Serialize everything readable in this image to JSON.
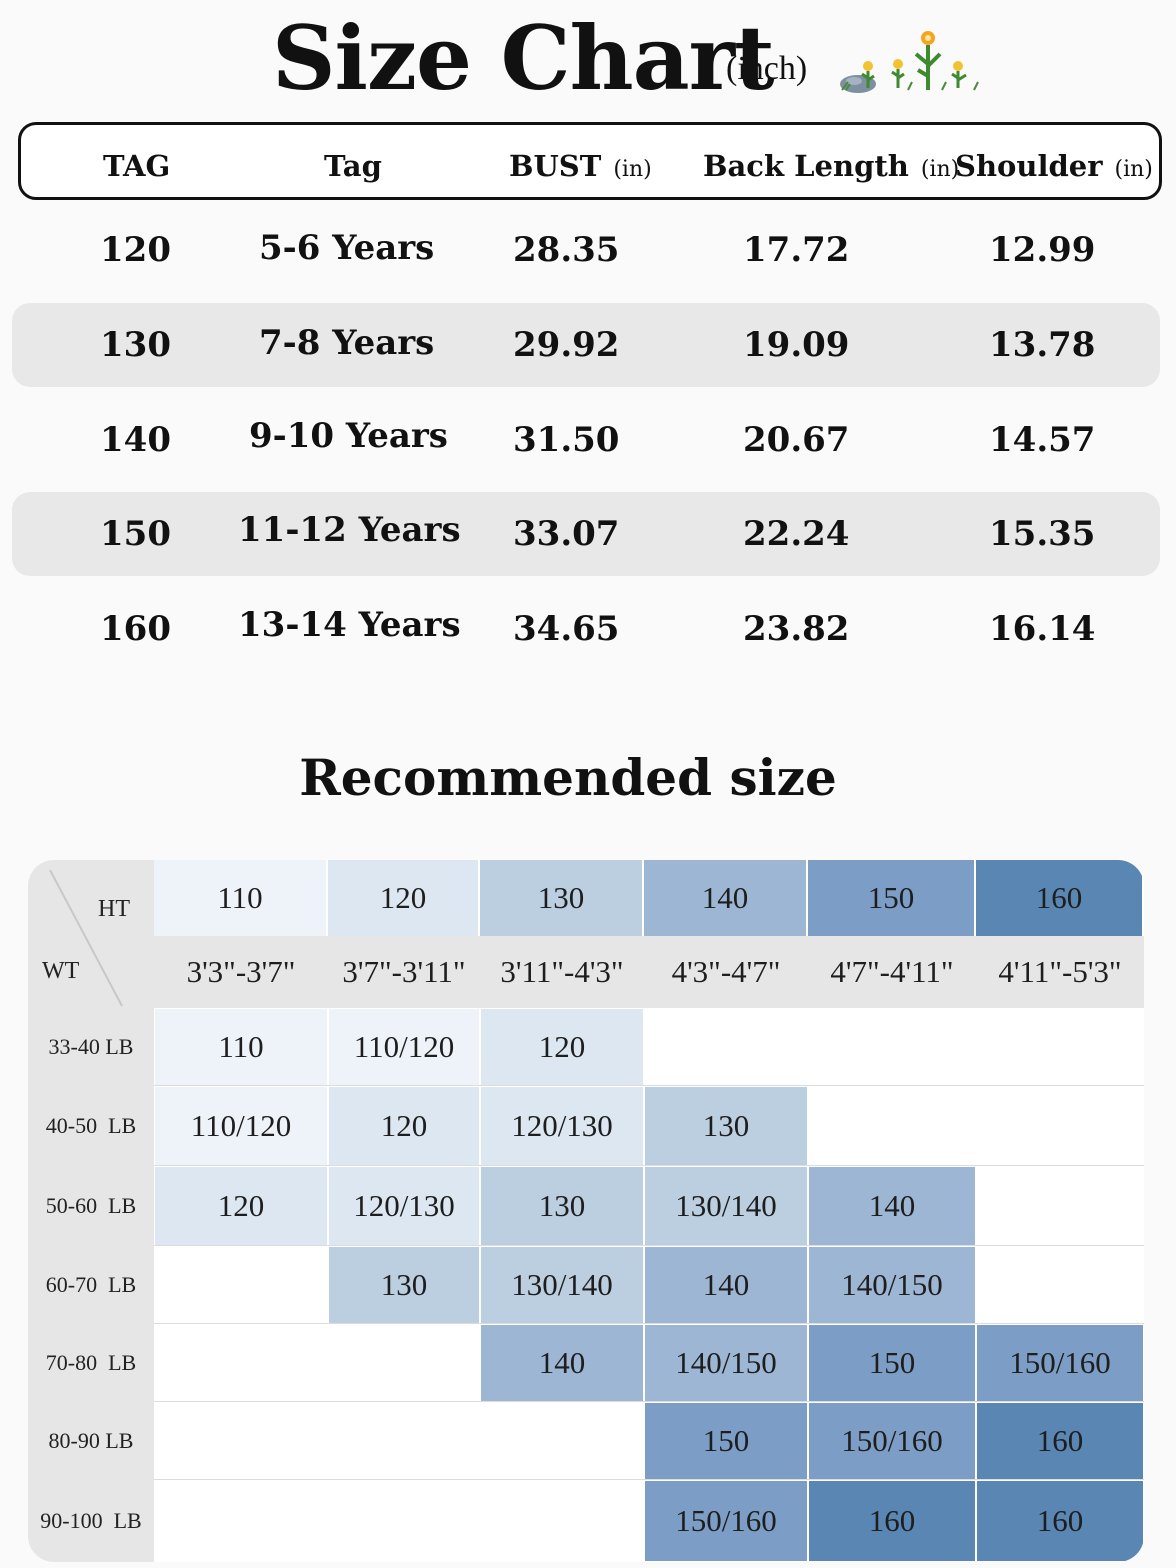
{
  "title": "Size Chart",
  "unit": "(inch)",
  "headers": {
    "tag": "TAG",
    "age": "Tag",
    "bust": "BUST",
    "back": "Back Length",
    "shoulder": "Shoulder",
    "unit": "(in)"
  },
  "rows": [
    {
      "tag": "120",
      "age": "5-6 Years",
      "bust": "28.35",
      "back": "17.72",
      "shoulder": "12.99"
    },
    {
      "tag": "130",
      "age": "7-8 Years",
      "bust": "29.92",
      "back": "19.09",
      "shoulder": "13.78"
    },
    {
      "tag": "140",
      "age": "9-10 Years",
      "bust": "31.50",
      "back": "20.67",
      "shoulder": "14.57"
    },
    {
      "tag": "150",
      "age": "11-12 Years",
      "bust": "33.07",
      "back": "22.24",
      "shoulder": "15.35"
    },
    {
      "tag": "160",
      "age": "13-14 Years",
      "bust": "34.65",
      "back": "23.82",
      "shoulder": "16.14"
    }
  ],
  "recommended": {
    "title": "Recommended size",
    "ht_label": "HT",
    "wt_label": "WT",
    "sizes": [
      "110",
      "120",
      "130",
      "140",
      "150",
      "160"
    ],
    "heights": [
      "3'3\"-3'7\"",
      "3'7\"-3'11\"",
      "3'11\"-4'3\"",
      "4'3\"-4'7\"",
      "4'7\"-4'11\"",
      "4'11\"-5'3\""
    ],
    "weights": [
      "33-40 LB",
      "40-50  LB",
      "50-60  LB",
      "60-70  LB",
      "70-80  LB",
      "80-90 LB",
      "90-100  LB"
    ],
    "cells": [
      [
        "110",
        "110/120",
        "120",
        "",
        "",
        ""
      ],
      [
        "110/120",
        "120",
        "120/130",
        "130",
        "",
        ""
      ],
      [
        "120",
        "120/130",
        "130",
        "130/140",
        "140",
        ""
      ],
      [
        "",
        "130",
        "130/140",
        "140",
        "140/150",
        ""
      ],
      [
        "",
        "",
        "140",
        "140/150",
        "150",
        "150/160"
      ],
      [
        "",
        "",
        "",
        "150",
        "150/160",
        "160"
      ],
      [
        "",
        "",
        "",
        "150/160",
        "160",
        "160"
      ]
    ]
  },
  "colors": {
    "110": "#eef3f9",
    "120": "#dde7f1",
    "130": "#bccfe1",
    "140": "#9db6d3",
    "150": "#7c9ec6",
    "160": "#5a86b4",
    "label_gray": "#e6e6e6"
  }
}
